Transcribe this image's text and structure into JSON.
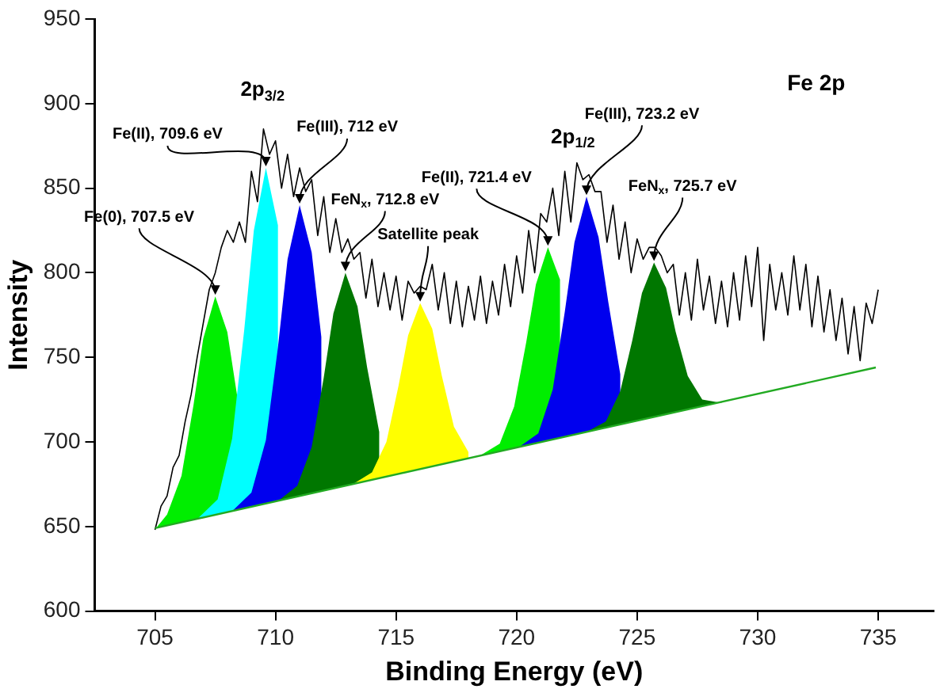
{
  "chart_data": {
    "type": "area",
    "xlabel": "Binding Energy (eV)",
    "ylabel": "Intensity",
    "xlim": [
      702.5,
      737.3
    ],
    "xticks": [
      705,
      710,
      715,
      720,
      725,
      730,
      735
    ],
    "ylim": [
      600,
      950
    ],
    "yticks": [
      600,
      650,
      700,
      750,
      800,
      850,
      900,
      950
    ],
    "grid": false,
    "legend": false,
    "marker": "none",
    "series": [
      {
        "type": "line",
        "color": "#000000",
        "x": [
          705,
          705.25,
          705.5,
          705.75,
          706,
          706.25,
          706.5,
          706.75,
          707,
          707.25,
          707.5,
          707.75,
          708,
          708.25,
          708.5,
          708.75,
          709,
          709.25,
          709.5,
          709.75,
          710,
          710.25,
          710.5,
          710.75,
          711,
          711.25,
          711.5,
          711.75,
          712,
          712.25,
          712.5,
          712.75,
          713,
          713.25,
          713.5,
          713.75,
          714,
          714.25,
          714.5,
          714.75,
          715,
          715.25,
          715.5,
          715.75,
          716,
          716.25,
          716.5,
          716.75,
          717,
          717.25,
          717.5,
          717.75,
          718,
          718.25,
          718.5,
          718.75,
          719,
          719.25,
          719.5,
          719.75,
          720,
          720.25,
          720.5,
          720.75,
          721,
          721.25,
          721.5,
          721.75,
          722,
          722.25,
          722.5,
          722.75,
          723,
          723.25,
          723.5,
          723.75,
          724,
          724.25,
          724.5,
          724.75,
          725,
          725.25,
          725.5,
          725.75,
          726,
          726.25,
          726.5,
          726.75,
          727,
          727.25,
          727.5,
          727.75,
          728,
          728.25,
          728.5,
          728.75,
          729,
          729.25,
          729.5,
          729.75,
          730,
          730.25,
          730.5,
          730.75,
          731,
          731.25,
          731.5,
          731.75,
          732,
          732.25,
          732.5,
          732.75,
          733,
          733.25,
          733.5,
          733.75,
          734,
          734.25,
          734.5,
          734.75,
          735
        ],
        "values": [
          648,
          662,
          668,
          685,
          692,
          712,
          728,
          750,
          770,
          790,
          800,
          815,
          825,
          818,
          830,
          818,
          860,
          842,
          885,
          870,
          878,
          850,
          870,
          845,
          862,
          848,
          855,
          822,
          845,
          812,
          832,
          812,
          820,
          808,
          812,
          785,
          808,
          780,
          800,
          778,
          798,
          772,
          795,
          788,
          792,
          790,
          805,
          778,
          800,
          770,
          795,
          768,
          792,
          772,
          798,
          770,
          795,
          775,
          805,
          780,
          810,
          788,
          825,
          800,
          835,
          830,
          850,
          822,
          860,
          830,
          865,
          855,
          858,
          848,
          848,
          818,
          840,
          808,
          830,
          800,
          820,
          808,
          815,
          815,
          810,
          800,
          805,
          775,
          800,
          772,
          808,
          778,
          798,
          770,
          795,
          768,
          800,
          772,
          810,
          780,
          815,
          760,
          805,
          778,
          800,
          775,
          810,
          778,
          805,
          768,
          798,
          765,
          790,
          760,
          785,
          752,
          780,
          748,
          782,
          770,
          790
        ]
      },
      {
        "color": "#00ee00",
        "x": [
          705.1,
          705.5,
          706.1,
          706.6,
          707,
          707.5,
          708,
          708.4
        ],
        "values": [
          650,
          657,
          680,
          722,
          761,
          786,
          765,
          728
        ]
      },
      {
        "color": "#00ffff",
        "x": [
          706.8,
          707.6,
          708.2,
          708.7,
          709.1,
          709.6,
          710.1
        ],
        "values": [
          655,
          666,
          702,
          766,
          825,
          862,
          828
        ]
      },
      {
        "color": "#0000ee",
        "x": [
          708.2,
          709,
          709.6,
          710.1,
          710.5,
          711,
          711.5,
          711.9
        ],
        "values": [
          659,
          670,
          701,
          756,
          808,
          840,
          812,
          762
        ]
      },
      {
        "color": "#007700",
        "x": [
          710.1,
          710.9,
          711.5,
          712,
          712.4,
          712.9,
          713.4,
          713.8,
          714.3
        ],
        "values": [
          665,
          674,
          697,
          738,
          776,
          800,
          780,
          744,
          706
        ]
      },
      {
        "color": "#ffff00",
        "x": [
          713.2,
          714,
          714.6,
          715.1,
          715.5,
          716,
          716.5,
          716.9,
          717.4,
          718
        ],
        "values": [
          675,
          682,
          700,
          733,
          763,
          782,
          767,
          739,
          709,
          694
        ]
      },
      {
        "color": "#00ee00",
        "x": [
          718.5,
          719.3,
          719.9,
          720.4,
          720.8,
          721.3,
          721.8
        ],
        "values": [
          692,
          699,
          721,
          759,
          793,
          815,
          796
        ]
      },
      {
        "color": "#0000ee",
        "x": [
          720.1,
          720.9,
          721.5,
          722,
          722.4,
          722.9,
          723.4,
          723.8,
          724.3
        ],
        "values": [
          697,
          705,
          731,
          777,
          818,
          845,
          821,
          783,
          740
        ]
      },
      {
        "color": "#007700",
        "x": [
          722.9,
          723.7,
          724.3,
          724.8,
          725.2,
          725.7,
          726.2,
          726.6,
          727.1,
          727.7,
          728.5
        ],
        "values": [
          706,
          712,
          730,
          760,
          788,
          806,
          791,
          765,
          739,
          725,
          723
        ]
      },
      {
        "type": "line",
        "color": "#22aa22",
        "x": [
          705,
          734.9
        ],
        "values": [
          649,
          744
        ]
      }
    ],
    "annotations": [
      {
        "text": "Fe(0), 707.5 eV",
        "x": 707.5,
        "y": 786
      },
      {
        "text": "Fe(II), 709.6 eV",
        "x": 709.6,
        "y": 862
      },
      {
        "text": "Fe(III), 712 eV",
        "x": 711,
        "y": 840
      },
      {
        "text": "FeN$_{x}$, 712.8 eV",
        "x": 712.9,
        "y": 800
      },
      {
        "text": "Satellite peak",
        "x": 716,
        "y": 782
      },
      {
        "text": "Fe(II), 721.4 eV",
        "x": 721.3,
        "y": 815
      },
      {
        "text": "Fe(III), 723.2 eV",
        "x": 722.9,
        "y": 845
      },
      {
        "text": "FeN$_{x}$, 725.7 eV",
        "x": 725.7,
        "y": 806
      },
      "2p$_{3/2}$",
      "2p$_{1/2}$",
      "Fe 2p"
    ]
  }
}
